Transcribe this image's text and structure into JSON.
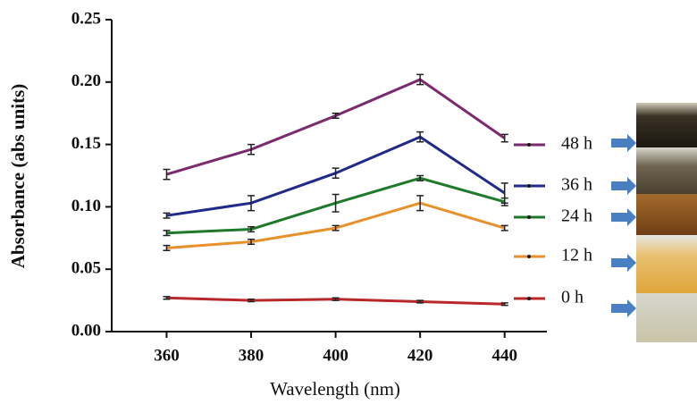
{
  "chart_data": {
    "type": "line",
    "x_label": "Wavelength (nm)",
    "y_label": "Absorbance (abs units)",
    "x": [
      360,
      380,
      400,
      420,
      440
    ],
    "xlim": [
      347,
      450
    ],
    "xticks": [
      360,
      380,
      400,
      420,
      440
    ],
    "ylim": [
      0,
      0.25
    ],
    "yticks": [
      {
        "value": 0,
        "label": "0.00"
      },
      0.05,
      {
        "value": 0.1,
        "label": "0.10"
      },
      0.15,
      {
        "value": 0.2,
        "label": "0.20"
      },
      0.25
    ],
    "series": [
      {
        "name": "48 h",
        "color": "#7b2a6e",
        "values": [
          0.126,
          0.146,
          0.173,
          0.202,
          0.155
        ],
        "errors": [
          0.004,
          0.004,
          0.002,
          0.004,
          0.003
        ]
      },
      {
        "name": "36 h",
        "color": "#1f2a8a",
        "values": [
          0.093,
          0.103,
          0.127,
          0.156,
          0.111
        ],
        "errors": [
          0.002,
          0.006,
          0.004,
          0.004,
          0.008
        ]
      },
      {
        "name": "24 h",
        "color": "#1e7a2a",
        "values": [
          0.079,
          0.082,
          0.103,
          0.123,
          0.104
        ],
        "errors": [
          0.002,
          0.002,
          0.007,
          0.002,
          0.003
        ]
      },
      {
        "name": "12 h",
        "color": "#e8902a",
        "values": [
          0.067,
          0.072,
          0.083,
          0.103,
          0.083
        ],
        "errors": [
          0.002,
          0.002,
          0.002,
          0.006,
          0.002
        ]
      },
      {
        "name": "0 h",
        "color": "#b8282a",
        "values": [
          0.027,
          0.025,
          0.026,
          0.024,
          0.022
        ],
        "errors": [
          0.001,
          0.001,
          0.001,
          0.001,
          0.001
        ]
      }
    ]
  }
}
